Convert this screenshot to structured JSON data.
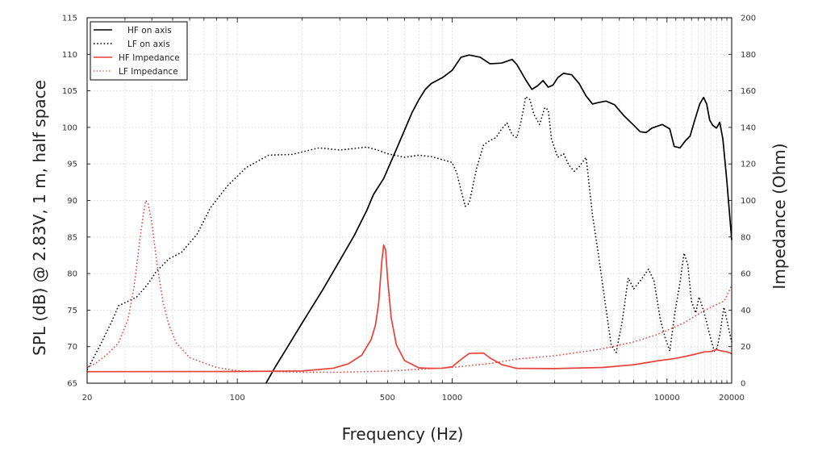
{
  "chart_data": {
    "type": "line",
    "xlabel": "Frequency (Hz)",
    "ylabel": "SPL (dB) @ 2.83V, 1 m, half space",
    "y2label": "Impedance (Ohm)",
    "xscale": "log",
    "xlim": [
      20,
      20000
    ],
    "ylim": [
      65,
      115
    ],
    "y2lim": [
      0,
      200
    ],
    "grid": true,
    "legend_position": "top-left",
    "x_ticks": [
      {
        "value": 20,
        "label": "20"
      },
      {
        "value": 100,
        "label": "100"
      },
      {
        "value": 500,
        "label": "500"
      },
      {
        "value": 1000,
        "label": "1000"
      },
      {
        "value": 10000,
        "label": "10000"
      },
      {
        "value": 20000,
        "label": "20000"
      }
    ],
    "y_ticks": [
      65,
      70,
      75,
      80,
      85,
      90,
      95,
      100,
      105,
      110,
      115
    ],
    "y2_ticks": [
      0,
      20,
      40,
      60,
      80,
      100,
      120,
      140,
      160,
      180,
      200
    ],
    "series": [
      {
        "name": "HF on axis",
        "axis": "left",
        "color": "#000000",
        "style": "solid",
        "points": [
          [
            136,
            65
          ],
          [
            150,
            67.2
          ],
          [
            170,
            69.8
          ],
          [
            200,
            73.2
          ],
          [
            250,
            77.8
          ],
          [
            300,
            81.8
          ],
          [
            350,
            85.2
          ],
          [
            400,
            88.6
          ],
          [
            430,
            90.8
          ],
          [
            480,
            93
          ],
          [
            550,
            97
          ],
          [
            600,
            99.6
          ],
          [
            650,
            102
          ],
          [
            700,
            103.8
          ],
          [
            750,
            105.2
          ],
          [
            800,
            106
          ],
          [
            900,
            106.8
          ],
          [
            1000,
            107.8
          ],
          [
            1100,
            109.6
          ],
          [
            1200,
            109.9
          ],
          [
            1350,
            109.6
          ],
          [
            1500,
            108.7
          ],
          [
            1700,
            108.8
          ],
          [
            1900,
            109.3
          ],
          [
            2000,
            108.6
          ],
          [
            2200,
            106.5
          ],
          [
            2350,
            105.2
          ],
          [
            2500,
            105.7
          ],
          [
            2650,
            106.4
          ],
          [
            2800,
            105.5
          ],
          [
            2950,
            105.8
          ],
          [
            3100,
            106.8
          ],
          [
            3300,
            107.4
          ],
          [
            3600,
            107.2
          ],
          [
            3900,
            106
          ],
          [
            4200,
            104.3
          ],
          [
            4500,
            103.2
          ],
          [
            4800,
            103.4
          ],
          [
            5200,
            103.6
          ],
          [
            5700,
            103.1
          ],
          [
            6300,
            101.6
          ],
          [
            7000,
            100.3
          ],
          [
            7500,
            99.4
          ],
          [
            8000,
            99.3
          ],
          [
            8500,
            99.9
          ],
          [
            9500,
            100.4
          ],
          [
            10300,
            99.8
          ],
          [
            10800,
            97.4
          ],
          [
            11500,
            97.2
          ],
          [
            12200,
            98.2
          ],
          [
            12800,
            98.8
          ],
          [
            13500,
            101.1
          ],
          [
            14200,
            103.2
          ],
          [
            14800,
            104.1
          ],
          [
            15300,
            103.2
          ],
          [
            15800,
            101
          ],
          [
            16300,
            100.3
          ],
          [
            17000,
            99.9
          ],
          [
            17600,
            100.7
          ],
          [
            18200,
            98.4
          ],
          [
            19000,
            92.6
          ],
          [
            20000,
            84.6
          ]
        ]
      },
      {
        "name": "LF on axis",
        "axis": "left",
        "color": "#000000",
        "style": "dotted",
        "points": [
          [
            20,
            66.8
          ],
          [
            23,
            70.2
          ],
          [
            26,
            73.4
          ],
          [
            28,
            75.6
          ],
          [
            30,
            76
          ],
          [
            34,
            76.8
          ],
          [
            38,
            78.4
          ],
          [
            42,
            80.3
          ],
          [
            48,
            82
          ],
          [
            55,
            82.9
          ],
          [
            65,
            85.4
          ],
          [
            75,
            89
          ],
          [
            90,
            92
          ],
          [
            110,
            94.5
          ],
          [
            140,
            96.2
          ],
          [
            180,
            96.3
          ],
          [
            240,
            97.2
          ],
          [
            300,
            96.9
          ],
          [
            400,
            97.3
          ],
          [
            450,
            96.9
          ],
          [
            500,
            96.4
          ],
          [
            600,
            95.9
          ],
          [
            700,
            96.2
          ],
          [
            800,
            96
          ],
          [
            900,
            95.6
          ],
          [
            1000,
            95.2
          ],
          [
            1050,
            93.8
          ],
          [
            1100,
            91.4
          ],
          [
            1150,
            89.2
          ],
          [
            1200,
            89.6
          ],
          [
            1300,
            94.4
          ],
          [
            1400,
            97.6
          ],
          [
            1500,
            98.2
          ],
          [
            1600,
            98.6
          ],
          [
            1700,
            99.8
          ],
          [
            1800,
            100.6
          ],
          [
            1900,
            99
          ],
          [
            2000,
            98.6
          ],
          [
            2100,
            101
          ],
          [
            2200,
            104.2
          ],
          [
            2300,
            103.8
          ],
          [
            2400,
            101.8
          ],
          [
            2550,
            100.4
          ],
          [
            2700,
            102.7
          ],
          [
            2800,
            102.4
          ],
          [
            2900,
            98.4
          ],
          [
            3100,
            95.9
          ],
          [
            3300,
            96.4
          ],
          [
            3500,
            94.8
          ],
          [
            3700,
            94
          ],
          [
            3900,
            94.6
          ],
          [
            4200,
            95.9
          ],
          [
            4500,
            88
          ],
          [
            4800,
            82.5
          ],
          [
            5200,
            75.2
          ],
          [
            5500,
            70.2
          ],
          [
            5800,
            69.2
          ],
          [
            6200,
            73.6
          ],
          [
            6600,
            79.4
          ],
          [
            7000,
            77.9
          ],
          [
            7600,
            79.2
          ],
          [
            8200,
            80.6
          ],
          [
            8700,
            79
          ],
          [
            9300,
            73.8
          ],
          [
            9800,
            71.2
          ],
          [
            10300,
            69.4
          ],
          [
            10900,
            74.8
          ],
          [
            11500,
            78.8
          ],
          [
            12000,
            82.8
          ],
          [
            12500,
            81.2
          ],
          [
            13000,
            76.2
          ],
          [
            13600,
            74.6
          ],
          [
            14100,
            76.8
          ],
          [
            14700,
            75.2
          ],
          [
            15300,
            73.3
          ],
          [
            16000,
            71
          ],
          [
            16600,
            69.4
          ],
          [
            17100,
            69.8
          ],
          [
            17600,
            71.6
          ],
          [
            18400,
            75.4
          ],
          [
            19200,
            73
          ],
          [
            20000,
            70.6
          ]
        ]
      },
      {
        "name": "HF Impedance",
        "axis": "right",
        "color": "#e8413a",
        "style": "solid",
        "points": [
          [
            20,
            6.3
          ],
          [
            100,
            6.4
          ],
          [
            200,
            6.7
          ],
          [
            280,
            8.2
          ],
          [
            330,
            10.7
          ],
          [
            380,
            15.4
          ],
          [
            420,
            24
          ],
          [
            440,
            32
          ],
          [
            455,
            44
          ],
          [
            470,
            66
          ],
          [
            480,
            75.6
          ],
          [
            490,
            73
          ],
          [
            500,
            58
          ],
          [
            520,
            36
          ],
          [
            550,
            21
          ],
          [
            600,
            12.4
          ],
          [
            700,
            8.4
          ],
          [
            800,
            8.1
          ],
          [
            900,
            8.2
          ],
          [
            1000,
            9
          ],
          [
            1100,
            13
          ],
          [
            1200,
            16.3
          ],
          [
            1400,
            16.5
          ],
          [
            1500,
            13.8
          ],
          [
            1700,
            10.2
          ],
          [
            2000,
            8.1
          ],
          [
            3000,
            8
          ],
          [
            5000,
            8.6
          ],
          [
            7000,
            10.1
          ],
          [
            9000,
            12.2
          ],
          [
            11000,
            13.6
          ],
          [
            13000,
            15.4
          ],
          [
            15000,
            17.2
          ],
          [
            16000,
            17.3
          ],
          [
            17000,
            18.4
          ],
          [
            18000,
            17.6
          ],
          [
            19000,
            17.2
          ],
          [
            20000,
            16.2
          ]
        ]
      },
      {
        "name": "LF Impedance",
        "axis": "right",
        "color": "#e8413a",
        "style": "dotted",
        "points": [
          [
            20,
            8.4
          ],
          [
            22,
            11
          ],
          [
            25,
            16.2
          ],
          [
            28,
            22
          ],
          [
            31,
            35
          ],
          [
            33,
            52
          ],
          [
            34.5,
            70
          ],
          [
            35.6,
            83
          ],
          [
            36.5,
            92.2
          ],
          [
            37.5,
            100
          ],
          [
            38.5,
            98
          ],
          [
            40,
            88
          ],
          [
            42,
            68
          ],
          [
            45,
            45
          ],
          [
            48,
            32
          ],
          [
            52,
            22
          ],
          [
            60,
            14
          ],
          [
            80,
            8.6
          ],
          [
            100,
            6.8
          ],
          [
            200,
            6
          ],
          [
            300,
            6
          ],
          [
            500,
            6.6
          ],
          [
            800,
            8
          ],
          [
            1000,
            8.6
          ],
          [
            1500,
            10.8
          ],
          [
            2000,
            13.2
          ],
          [
            3000,
            15
          ],
          [
            5000,
            18.8
          ],
          [
            7000,
            22.6
          ],
          [
            9000,
            26.6
          ],
          [
            12000,
            33
          ],
          [
            15000,
            40
          ],
          [
            17000,
            43
          ],
          [
            18500,
            45
          ],
          [
            19000,
            48
          ],
          [
            20000,
            53.6
          ]
        ]
      }
    ],
    "legend": [
      {
        "label": "HF on axis",
        "color": "#000000",
        "style": "solid"
      },
      {
        "label": "LF on axis",
        "color": "#000000",
        "style": "dotted"
      },
      {
        "label": "HF Impedance",
        "color": "#e8413a",
        "style": "solid"
      },
      {
        "label": "LF Impedance",
        "color": "#e8413a",
        "style": "dotted"
      }
    ]
  }
}
